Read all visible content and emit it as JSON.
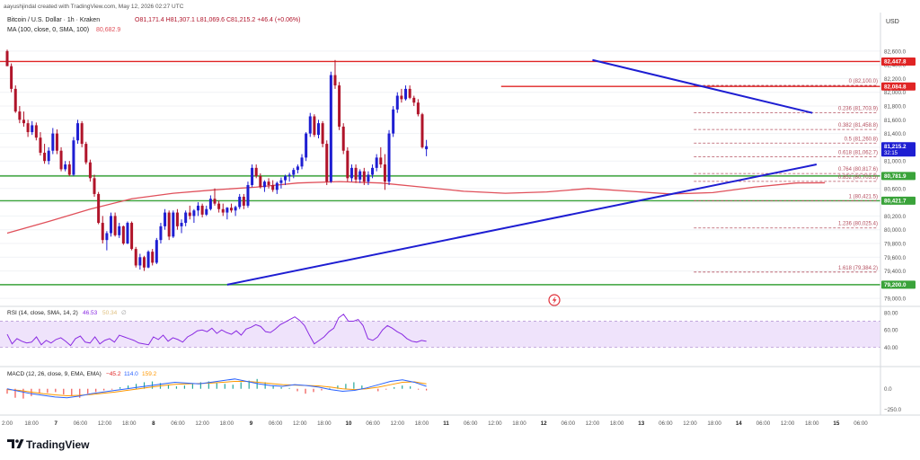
{
  "header": {
    "credit": "aayushjindal created with TradingView.com, May 12, 2026 02:27 UTC",
    "symbol": "Bitcoin / U.S. Dollar · 1h · Kraken",
    "ohlc": "O81,171.4  H81,307.1  L81,069.6  C81,215.2  +46.4 (+0.06%)",
    "ma": "MA (100, close, 0, SMA, 100)",
    "ma_value": "80,682.9",
    "currency": "USD"
  },
  "colors": {
    "up": "#1e1ed2",
    "down": "#b0142a",
    "ma": "#e0505a",
    "support": "#3aa33a",
    "resistance": "#e02424",
    "fib": "#b45060",
    "trend": "#1e1ed2",
    "rsi": "#8a2be2",
    "rsi_band": "#efe3fb",
    "macd": "#2962ff",
    "signal": "#ff9800"
  },
  "chart_data": [
    {
      "type": "candlestick",
      "title": "Bitcoin / U.S. Dollar · 1h · Kraken",
      "ylim": [
        78950,
        82820
      ],
      "x_ticks": [
        "2:00",
        "18:00",
        "7",
        "06:00",
        "12:00",
        "18:00",
        "8",
        "06:00",
        "12:00",
        "18:00",
        "9",
        "06:00",
        "12:00",
        "18:00",
        "10",
        "06:00",
        "12:00",
        "18:00",
        "11",
        "06:00",
        "12:00",
        "18:00",
        "12",
        "06:00",
        "12:00",
        "18:00",
        "13",
        "06:00",
        "12:00",
        "18:00",
        "14",
        "06:00",
        "12:00",
        "18:00",
        "15",
        "06:00"
      ],
      "y_ticks": [
        82600,
        82400,
        82200,
        82000,
        81800,
        81600,
        81400,
        81200,
        81000,
        80800,
        80600,
        80400,
        80200,
        80000,
        79800,
        79600,
        79400,
        79200,
        79000
      ],
      "y_tick_labels": [
        "82,600.0",
        "82,400.0",
        "82,200.0",
        "82,000.0",
        "81,800.0",
        "81,600.0",
        "81,400.0",
        "81,200.0",
        "81,000.0",
        "80,800.0",
        "80,600.0",
        "80,400.0",
        "80,200.0",
        "80,000.0",
        "79,800.0",
        "79,600.0",
        "79,400.0",
        "79,200.0",
        "79,000.0"
      ],
      "price_tags": [
        {
          "value": 82447.8,
          "label": "82,447.8",
          "color": "#e02424"
        },
        {
          "value": 82084.8,
          "label": "82,084.8",
          "color": "#e02424"
        },
        {
          "value": 81215.2,
          "label": "81,215.2",
          "sublabel": "32:15",
          "color": "#1e1ed2"
        },
        {
          "value": 80781.9,
          "label": "80,781.9",
          "color": "#3aa33a"
        },
        {
          "value": 80421.7,
          "label": "80,421.7",
          "color": "#3aa33a"
        },
        {
          "value": 79200.0,
          "label": "79,200.0",
          "color": "#3aa33a"
        }
      ],
      "horizontal_levels": [
        {
          "value": 82447.8,
          "kind": "resistance",
          "from": 0,
          "to": 205
        },
        {
          "value": 82084.8,
          "kind": "resistance",
          "from": 119,
          "to": 205
        },
        {
          "value": 80781.9,
          "kind": "support",
          "from": 0,
          "to": 205
        },
        {
          "value": 80421.7,
          "kind": "support",
          "from": 0,
          "to": 205
        },
        {
          "value": 79200.0,
          "kind": "support",
          "from": 0,
          "to": 205
        }
      ],
      "fibonacci": [
        {
          "label": "0 (82,100.0)",
          "value": 82100.0
        },
        {
          "label": "0.236 (81,703.9)",
          "value": 81703.9
        },
        {
          "label": "0.382 (81,458.8)",
          "value": 81458.8
        },
        {
          "label": "0.5 (81,260.8)",
          "value": 81260.8
        },
        {
          "label": "0.618 (81,062.7)",
          "value": 81062.7
        },
        {
          "label": "0.764 (80,817.6)",
          "value": 80817.6
        },
        {
          "label": "0.852 (80,703.5)",
          "value": 80703.5
        },
        {
          "label": "1 (80,421.5)",
          "value": 80421.5
        },
        {
          "label": "1.236 (80,025.4)",
          "value": 80025.4
        },
        {
          "label": "1.618 (79,384.2)",
          "value": 79384.2
        }
      ],
      "fib_range": [
        165,
        205
      ],
      "trendlines": [
        {
          "from": [
            53,
            79200
          ],
          "to": [
            195,
            80950
          ]
        },
        {
          "from": [
            141,
            82470
          ],
          "to": [
            194,
            81700
          ]
        }
      ],
      "candles": [
        [
          82600,
          82620,
          82380,
          82380
        ],
        [
          82380,
          82420,
          82000,
          82050
        ],
        [
          82050,
          82100,
          81700,
          81720
        ],
        [
          81720,
          81800,
          81550,
          81600
        ],
        [
          81600,
          81720,
          81500,
          81550
        ],
        [
          81550,
          81600,
          81350,
          81420
        ],
        [
          81420,
          81580,
          81380,
          81520
        ],
        [
          81520,
          81560,
          81300,
          81340
        ],
        [
          81340,
          81420,
          81080,
          81120
        ],
        [
          81120,
          81250,
          80960,
          81000
        ],
        [
          81000,
          81200,
          80950,
          81150
        ],
        [
          81150,
          81480,
          81100,
          81400
        ],
        [
          81400,
          81460,
          81100,
          81150
        ],
        [
          81150,
          81200,
          80850,
          80880
        ],
        [
          80880,
          81000,
          80850,
          80950
        ],
        [
          80950,
          81000,
          80780,
          80800
        ],
        [
          80800,
          81350,
          80780,
          81300
        ],
        [
          81300,
          81600,
          81250,
          81550
        ],
        [
          81550,
          81580,
          81200,
          81250
        ],
        [
          81250,
          81280,
          80950,
          80980
        ],
        [
          80980,
          81020,
          80700,
          80750
        ],
        [
          80750,
          80800,
          80480,
          80520
        ],
        [
          80520,
          80550,
          80080,
          80100
        ],
        [
          80100,
          80200,
          79800,
          79850
        ],
        [
          79850,
          79980,
          79700,
          79950
        ],
        [
          79950,
          80250,
          79900,
          80200
        ],
        [
          80200,
          80250,
          79900,
          79920
        ],
        [
          79920,
          80100,
          79880,
          80050
        ],
        [
          80050,
          80060,
          79780,
          79800
        ],
        [
          79800,
          80120,
          79790,
          80100
        ],
        [
          80100,
          80120,
          79700,
          79720
        ],
        [
          79720,
          79750,
          79450,
          79480
        ],
        [
          79480,
          79650,
          79420,
          79600
        ],
        [
          79600,
          79620,
          79400,
          79450
        ],
        [
          79450,
          79700,
          79440,
          79680
        ],
        [
          79680,
          79720,
          79480,
          79520
        ],
        [
          79520,
          79880,
          79500,
          79850
        ],
        [
          79850,
          80100,
          79800,
          80050
        ],
        [
          80050,
          80300,
          80000,
          80250
        ],
        [
          80250,
          80280,
          79850,
          79900
        ],
        [
          79900,
          80280,
          79880,
          80250
        ],
        [
          80250,
          80300,
          80000,
          80050
        ],
        [
          80050,
          80150,
          79950,
          80100
        ],
        [
          80100,
          80280,
          80050,
          80250
        ],
        [
          80250,
          80350,
          80150,
          80200
        ],
        [
          80200,
          80300,
          80100,
          80280
        ],
        [
          80280,
          80400,
          80200,
          80350
        ],
        [
          80350,
          80380,
          80180,
          80220
        ],
        [
          80220,
          80350,
          80200,
          80300
        ],
        [
          80300,
          80500,
          80280,
          80450
        ],
        [
          80450,
          80600,
          80350,
          80380
        ],
        [
          80380,
          80420,
          80250,
          80300
        ],
        [
          80300,
          80380,
          80200,
          80250
        ],
        [
          80250,
          80330,
          80150,
          80320
        ],
        [
          80320,
          80380,
          80250,
          80280
        ],
        [
          80280,
          80350,
          80200,
          80330
        ],
        [
          80330,
          80520,
          80300,
          80480
        ],
        [
          80480,
          80520,
          80300,
          80350
        ],
        [
          80350,
          80700,
          80320,
          80650
        ],
        [
          80650,
          80950,
          80620,
          80900
        ],
        [
          80900,
          80950,
          80750,
          80780
        ],
        [
          80780,
          80820,
          80600,
          80620
        ],
        [
          80620,
          80720,
          80550,
          80700
        ],
        [
          80700,
          80750,
          80600,
          80650
        ],
        [
          80650,
          80720,
          80550,
          80580
        ],
        [
          80580,
          80700,
          80520,
          80680
        ],
        [
          80680,
          80760,
          80600,
          80720
        ],
        [
          80720,
          80800,
          80650,
          80780
        ],
        [
          80780,
          80830,
          80700,
          80800
        ],
        [
          80800,
          80900,
          80750,
          80870
        ],
        [
          80870,
          80950,
          80820,
          80920
        ],
        [
          80920,
          81100,
          80880,
          81050
        ],
        [
          81050,
          81420,
          81000,
          81400
        ],
        [
          81400,
          81700,
          81350,
          81650
        ],
        [
          81650,
          81680,
          81350,
          81380
        ],
        [
          81380,
          81600,
          81330,
          81550
        ],
        [
          81550,
          81580,
          81200,
          81250
        ],
        [
          81250,
          81300,
          80650,
          80700
        ],
        [
          80700,
          82300,
          80680,
          82250
        ],
        [
          82250,
          82470,
          82050,
          82100
        ],
        [
          82100,
          82150,
          81450,
          81500
        ],
        [
          81500,
          81550,
          81100,
          81150
        ],
        [
          81150,
          81200,
          80700,
          80750
        ],
        [
          80750,
          80950,
          80700,
          80900
        ],
        [
          80900,
          80950,
          80680,
          80730
        ],
        [
          80730,
          80880,
          80680,
          80850
        ],
        [
          80850,
          80900,
          80650,
          80700
        ],
        [
          80700,
          80850,
          80650,
          80800
        ],
        [
          80800,
          80950,
          80750,
          80900
        ],
        [
          80900,
          81100,
          80850,
          81050
        ],
        [
          81050,
          81200,
          80900,
          80950
        ],
        [
          80950,
          81100,
          80580,
          80700
        ],
        [
          80700,
          81450,
          80650,
          81400
        ],
        [
          81400,
          81800,
          81350,
          81750
        ],
        [
          81750,
          82000,
          81700,
          81950
        ],
        [
          81950,
          82050,
          81850,
          81900
        ],
        [
          81900,
          82100,
          81880,
          82050
        ],
        [
          82050,
          82100,
          81900,
          81920
        ],
        [
          81920,
          81950,
          81800,
          81850
        ],
        [
          81850,
          81900,
          81650,
          81680
        ],
        [
          81680,
          81700,
          81180,
          81200
        ],
        [
          81171.4,
          81307.1,
          81069.6,
          81215.2
        ]
      ],
      "ma100": [
        [
          0,
          79950
        ],
        [
          10,
          80120
        ],
        [
          20,
          80300
        ],
        [
          30,
          80450
        ],
        [
          40,
          80530
        ],
        [
          50,
          80580
        ],
        [
          60,
          80620
        ],
        [
          70,
          80680
        ],
        [
          80,
          80700
        ],
        [
          90,
          80680
        ],
        [
          100,
          80620
        ],
        [
          110,
          80560
        ],
        [
          120,
          80530
        ],
        [
          130,
          80550
        ],
        [
          140,
          80600
        ],
        [
          150,
          80560
        ],
        [
          160,
          80520
        ],
        [
          170,
          80540
        ],
        [
          180,
          80620
        ],
        [
          190,
          80680
        ],
        [
          197,
          80683
        ]
      ],
      "annotations": [
        "⚡"
      ]
    },
    {
      "type": "line",
      "title": "RSI (14, close, SMA, 14, 2)",
      "values_label": [
        "46.53",
        "50.34",
        "∅"
      ],
      "ylim": [
        20,
        85
      ],
      "y_ticks": [
        80,
        60,
        40
      ],
      "y_tick_labels": [
        "80.00",
        "60.00",
        "40.00"
      ],
      "band": [
        40,
        70
      ],
      "series": [
        {
          "values": [
            55,
            44,
            50,
            47,
            45,
            46,
            52,
            43,
            48,
            45,
            49,
            51,
            47,
            42,
            50,
            53,
            46,
            45,
            52,
            44,
            48,
            50,
            46,
            54,
            52,
            50,
            48,
            45,
            44,
            43,
            52,
            49,
            54,
            47,
            51,
            49,
            46,
            52,
            55,
            59,
            60,
            58,
            62,
            56,
            60,
            57,
            55,
            59,
            54,
            61,
            63,
            66,
            64,
            58,
            57,
            61,
            66,
            69,
            72,
            75,
            71,
            65,
            54,
            44,
            48,
            52,
            58,
            62,
            74,
            78,
            70,
            70,
            72,
            65,
            50,
            48,
            52,
            60,
            65,
            62,
            58,
            55,
            50,
            47,
            46,
            48,
            47
          ],
          "index_scale": 0.45
        }
      ]
    },
    {
      "type": "bar",
      "title": "MACD (12, 26, close, 9, EMA, EMA)",
      "values_label": [
        "−45.2",
        "114.0",
        "159.2"
      ],
      "ylim": [
        -300,
        250
      ],
      "y_ticks": [
        0,
        -250
      ],
      "y_tick_labels": [
        "0.0",
        "−250.0"
      ],
      "histogram": [
        -60,
        -110,
        -120,
        -90,
        -60,
        -50,
        -40,
        -70,
        -90,
        -110,
        -60,
        -40,
        -20,
        -10,
        20,
        40,
        60,
        80,
        90,
        70,
        50,
        30,
        40,
        60,
        80,
        90,
        70,
        60,
        50,
        80,
        100,
        120,
        80,
        40,
        20,
        10,
        -30,
        -60,
        -40,
        -20,
        10,
        40,
        60,
        80,
        40,
        0,
        -30,
        -10,
        20,
        40,
        30,
        -10,
        -20
      ],
      "macd_line": [
        0,
        -30,
        -60,
        -80,
        -100,
        -110,
        -90,
        -60,
        -40,
        -20,
        0,
        20,
        40,
        60,
        80,
        70,
        60,
        80,
        100,
        120,
        90,
        60,
        40,
        30,
        50,
        40,
        20,
        -10,
        -30,
        -20,
        10,
        50,
        90,
        110,
        80,
        30
      ],
      "signal_line": [
        -10,
        -20,
        -40,
        -60,
        -75,
        -85,
        -80,
        -70,
        -55,
        -40,
        -20,
        0,
        20,
        40,
        55,
        60,
        65,
        70,
        80,
        90,
        90,
        80,
        65,
        50,
        45,
        40,
        35,
        20,
        0,
        -10,
        0,
        20,
        50,
        80,
        85,
        60
      ]
    }
  ],
  "logo": "TradingView"
}
